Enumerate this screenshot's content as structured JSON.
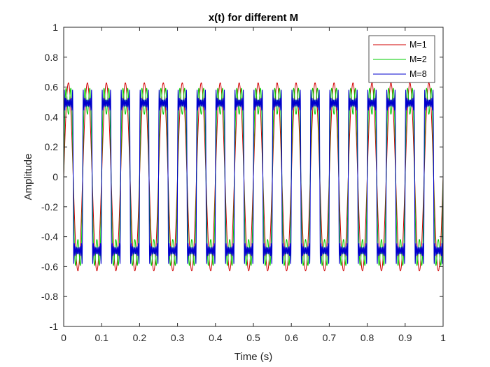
{
  "chart_data": {
    "type": "line",
    "title": "x(t) for different M",
    "xlabel": "Time (s)",
    "ylabel": "Amplitude",
    "xlim": [
      0,
      1
    ],
    "ylim": [
      -1,
      1
    ],
    "x_ticks": [
      "0",
      "0.1",
      "0.2",
      "0.3",
      "0.4",
      "0.5",
      "0.6",
      "0.7",
      "0.8",
      "0.9",
      "1"
    ],
    "y_ticks": [
      "-1",
      "-0.8",
      "-0.6",
      "-0.4",
      "-0.2",
      "0",
      "0.2",
      "0.4",
      "0.6",
      "0.8",
      "1"
    ],
    "grid": false,
    "legend_position": "top-right",
    "fundamental_frequency_hz": 20,
    "series": [
      {
        "name": "M=1",
        "color": "#d00000",
        "harmonics": 1
      },
      {
        "name": "M=2",
        "color": "#00cc00",
        "harmonics": 2
      },
      {
        "name": "M=8",
        "color": "#0000cc",
        "harmonics": 8
      }
    ]
  }
}
